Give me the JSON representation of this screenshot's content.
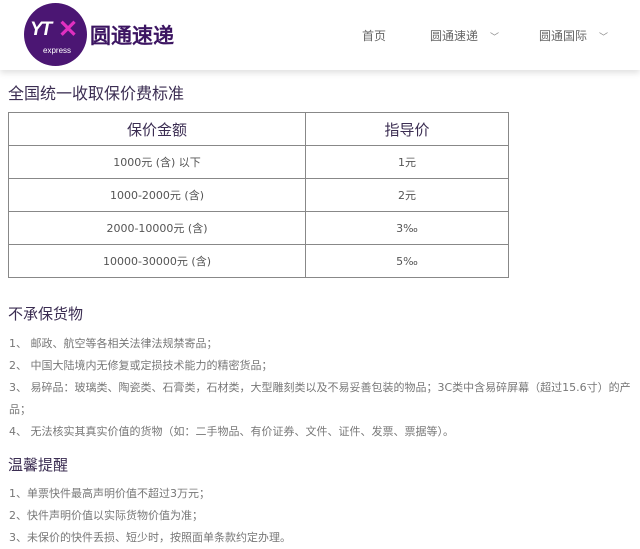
{
  "header": {
    "logo_text": "YTO",
    "logo_sub": "express",
    "brand": "圆通速递",
    "nav": [
      {
        "label": "首页"
      },
      {
        "label": "圆通速递",
        "dropdown": true
      },
      {
        "label": "圆通国际",
        "dropdown": true
      }
    ]
  },
  "colors": {
    "brand": "#4b1673",
    "accent": "#e030c0"
  },
  "pricing": {
    "title": "全国统一收取保价费标准",
    "headers": [
      "保价金额",
      "指导价"
    ],
    "rows": [
      [
        "1000元 (含) 以下",
        "1元"
      ],
      [
        "1000-2000元 (含)",
        "2元"
      ],
      [
        "2000-10000元 (含)",
        "3‰"
      ],
      [
        "10000-30000元 (含)",
        "5‰"
      ]
    ]
  },
  "excluded": {
    "title": "不承保货物",
    "items": [
      "1、 邮政、航空等各相关法律法规禁寄品；",
      "2、 中国大陆境内无修复或定损技术能力的精密货品；",
      "3、 易碎品：玻璃类、陶瓷类、石膏类，石材类，大型雕刻类以及不易妥善包装的物品；3C类中含易碎屏幕（超过15.6寸）的产品；",
      "4、 无法核实其真实价值的货物（如：二手物品、有价证券、文件、证件、发票、票据等）。"
    ]
  },
  "tips": {
    "title": "温馨提醒",
    "items": [
      "1、单票快件最高声明价值不超过3万元；",
      "2、快件声明价值以实际货物价值为准；",
      "3、未保价的快件丢损、短少时，按照面单条款约定办理。"
    ]
  }
}
